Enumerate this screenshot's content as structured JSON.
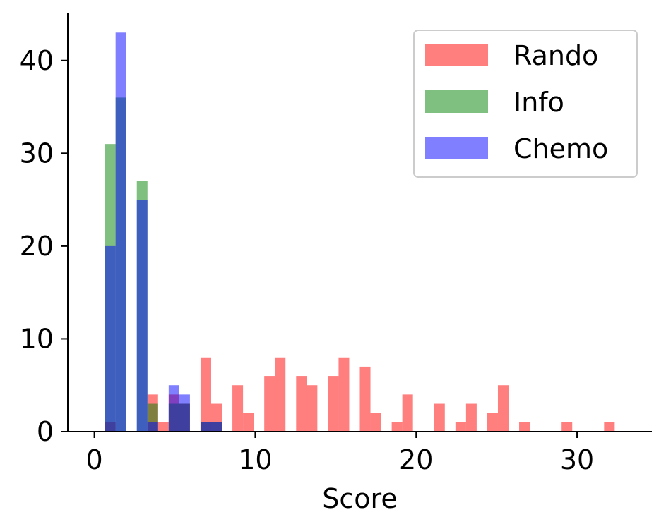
{
  "chart_data": {
    "type": "bar",
    "xlabel": "Score",
    "ylabel": "",
    "xlim": [
      -1.65,
      34.65
    ],
    "ylim": [
      0,
      45.15
    ],
    "xticks": [
      0,
      10,
      20,
      30
    ],
    "yticks": [
      0,
      10,
      20,
      30,
      40
    ],
    "grid": false,
    "legend": "upper right",
    "bin_width": 0.66,
    "series": [
      {
        "name": "Rando",
        "color": "#ff0000",
        "opacity": 0.5,
        "bars": [
          {
            "x": 0.66,
            "value": 1
          },
          {
            "x": 3.3,
            "value": 4
          },
          {
            "x": 3.96,
            "value": 1
          },
          {
            "x": 4.62,
            "value": 4
          },
          {
            "x": 5.28,
            "value": 3
          },
          {
            "x": 6.6,
            "value": 8
          },
          {
            "x": 7.26,
            "value": 3
          },
          {
            "x": 8.58,
            "value": 5
          },
          {
            "x": 9.24,
            "value": 2
          },
          {
            "x": 10.56,
            "value": 6
          },
          {
            "x": 11.22,
            "value": 8
          },
          {
            "x": 12.54,
            "value": 6
          },
          {
            "x": 13.2,
            "value": 5
          },
          {
            "x": 14.52,
            "value": 6
          },
          {
            "x": 15.18,
            "value": 8
          },
          {
            "x": 16.5,
            "value": 7
          },
          {
            "x": 17.16,
            "value": 2
          },
          {
            "x": 18.48,
            "value": 1
          },
          {
            "x": 19.14,
            "value": 4
          },
          {
            "x": 21.12,
            "value": 3
          },
          {
            "x": 22.44,
            "value": 1
          },
          {
            "x": 23.1,
            "value": 3
          },
          {
            "x": 24.42,
            "value": 2
          },
          {
            "x": 25.08,
            "value": 5
          },
          {
            "x": 26.4,
            "value": 1
          },
          {
            "x": 29.04,
            "value": 1
          },
          {
            "x": 31.68,
            "value": 1
          }
        ]
      },
      {
        "name": "Info",
        "color": "#008000",
        "opacity": 0.5,
        "bars": [
          {
            "x": 0.66,
            "value": 31
          },
          {
            "x": 1.32,
            "value": 36
          },
          {
            "x": 2.64,
            "value": 27
          },
          {
            "x": 3.3,
            "value": 3
          },
          {
            "x": 4.62,
            "value": 3
          },
          {
            "x": 5.28,
            "value": 3
          },
          {
            "x": 6.6,
            "value": 1
          },
          {
            "x": 7.26,
            "value": 1
          }
        ]
      },
      {
        "name": "Chemo",
        "color": "#0000ff",
        "opacity": 0.5,
        "bars": [
          {
            "x": 0.66,
            "value": 20
          },
          {
            "x": 1.32,
            "value": 43
          },
          {
            "x": 2.64,
            "value": 25
          },
          {
            "x": 3.3,
            "value": 1
          },
          {
            "x": 4.62,
            "value": 5
          },
          {
            "x": 5.28,
            "value": 4
          },
          {
            "x": 6.6,
            "value": 1
          },
          {
            "x": 7.26,
            "value": 1
          }
        ]
      }
    ]
  }
}
